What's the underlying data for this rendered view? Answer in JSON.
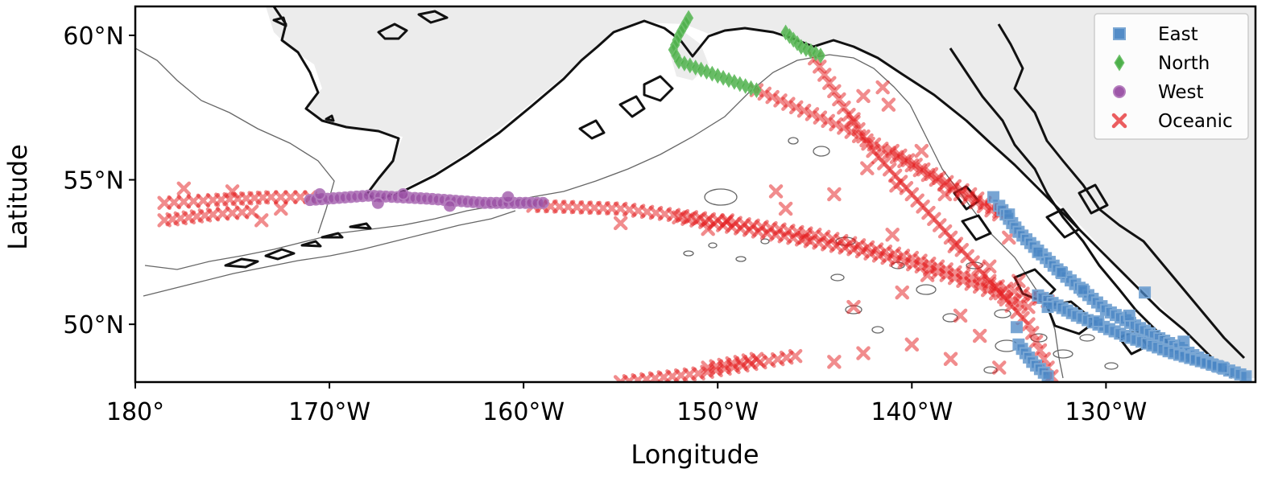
{
  "chart_data": {
    "type": "scatter",
    "title": "",
    "xlabel": "Longitude",
    "ylabel": "Latitude",
    "xlim": [
      -180,
      -122.3
    ],
    "ylim": [
      48,
      61
    ],
    "x_ticks": [
      {
        "value": -180,
        "label": "180°"
      },
      {
        "value": -170,
        "label": "170°W"
      },
      {
        "value": -160,
        "label": "160°W"
      },
      {
        "value": -150,
        "label": "150°W"
      },
      {
        "value": -140,
        "label": "140°W"
      },
      {
        "value": -130,
        "label": "130°W"
      }
    ],
    "y_ticks": [
      {
        "value": 50,
        "label": "50°N"
      },
      {
        "value": 55,
        "label": "55°N"
      },
      {
        "value": 60,
        "label": "60°N"
      }
    ],
    "legend_position": "top-right",
    "series": [
      {
        "name": "East",
        "marker": "square",
        "color": "#4a86c4",
        "edge": "#7aa7d4",
        "alpha": 0.75,
        "segments": [
          [
            [
              -135.5,
              54.1
            ],
            [
              -134.5,
              53.2
            ],
            [
              -132.5,
              51.9
            ],
            [
              -130.0,
              50.5
            ],
            [
              -127.5,
              49.6
            ],
            [
              -124.5,
              48.6
            ],
            [
              -122.8,
              48.2
            ]
          ],
          [
            [
              -133.5,
              51.0
            ],
            [
              -131.5,
              50.3
            ],
            [
              -129.0,
              49.6
            ],
            [
              -126.5,
              49.0
            ],
            [
              -124.0,
              48.5
            ]
          ],
          [
            [
              -134.5,
              49.3
            ],
            [
              -133.8,
              48.7
            ],
            [
              -133.0,
              48.2
            ]
          ]
        ],
        "scatter": [
          [
            -135.8,
            54.4
          ],
          [
            -135.0,
            53.8
          ],
          [
            -133.5,
            52.5
          ],
          [
            -132.3,
            51.8
          ],
          [
            -131.2,
            51.2
          ],
          [
            -128.0,
            51.1
          ],
          [
            -134.6,
            49.9
          ],
          [
            -133.0,
            50.6
          ],
          [
            -128.8,
            50.3
          ],
          [
            -126.0,
            49.4
          ],
          [
            -130.4,
            50.1
          ]
        ]
      },
      {
        "name": "North",
        "marker": "diamond",
        "color": "#4daf4a",
        "edge": "#6cc06a",
        "alpha": 0.85,
        "segments": [
          [
            [
              -151.5,
              60.6
            ],
            [
              -152.0,
              60.0
            ],
            [
              -152.3,
              59.5
            ],
            [
              -152.0,
              59.1
            ],
            [
              -150.0,
              58.6
            ],
            [
              -148.0,
              58.1
            ]
          ],
          [
            [
              -146.5,
              60.1
            ],
            [
              -145.7,
              59.6
            ],
            [
              -144.7,
              59.3
            ]
          ]
        ],
        "scatter": []
      },
      {
        "name": "West",
        "marker": "circle",
        "color": "#984ea3",
        "edge": "#b47dbd",
        "alpha": 0.75,
        "segments": [
          [
            [
              -171.0,
              54.3
            ],
            [
              -168.0,
              54.45
            ],
            [
              -165.0,
              54.35
            ],
            [
              -162.0,
              54.2
            ],
            [
              -159.0,
              54.2
            ]
          ]
        ],
        "scatter": [
          [
            -170.5,
            54.5
          ],
          [
            -167.5,
            54.2
          ],
          [
            -166.2,
            54.5
          ],
          [
            -163.8,
            54.1
          ],
          [
            -160.8,
            54.4
          ]
        ]
      },
      {
        "name": "Oceanic",
        "marker": "x",
        "color": "#e41a1c",
        "edge": "#e41a1c",
        "alpha": 0.5,
        "segments": [
          [
            [
              -148.0,
              58.1
            ],
            [
              -143.5,
              56.8
            ],
            [
              -140.0,
              55.5
            ],
            [
              -137.5,
              54.5
            ],
            [
              -135.5,
              53.8
            ]
          ],
          [
            [
              -145.0,
              59.2
            ],
            [
              -143.5,
              57.5
            ],
            [
              -142.0,
              56.0
            ],
            [
              -140.0,
              54.5
            ],
            [
              -138.0,
              53.0
            ],
            [
              -136.0,
              51.5
            ],
            [
              -134.0,
              50.0
            ],
            [
              -132.8,
              48.2
            ]
          ],
          [
            [
              -141.0,
              56.0
            ],
            [
              -139.0,
              55.2
            ],
            [
              -137.0,
              54.5
            ],
            [
              -135.5,
              53.9
            ]
          ],
          [
            [
              -159.5,
              54.1
            ],
            [
              -155.0,
              54.0
            ],
            [
              -150.0,
              53.6
            ],
            [
              -145.0,
              53.1
            ],
            [
              -140.0,
              52.3
            ],
            [
              -136.0,
              51.4
            ],
            [
              -133.0,
              50.8
            ]
          ],
          [
            [
              -152.0,
              53.7
            ],
            [
              -147.0,
              53.1
            ],
            [
              -143.0,
              52.6
            ],
            [
              -139.5,
              52.0
            ],
            [
              -136.5,
              51.3
            ],
            [
              -134.0,
              50.6
            ]
          ],
          [
            [
              -178.5,
              54.2
            ],
            [
              -176.0,
              54.3
            ],
            [
              -173.0,
              54.4
            ],
            [
              -171.0,
              54.4
            ]
          ],
          [
            [
              -178.5,
              53.6
            ],
            [
              -176.0,
              53.8
            ],
            [
              -174.0,
              53.9
            ]
          ],
          [
            [
              -155.0,
              48.0
            ],
            [
              -151.0,
              48.3
            ],
            [
              -146.0,
              48.9
            ]
          ],
          [
            [
              -150.5,
              48.5
            ],
            [
              -148.0,
              48.8
            ]
          ]
        ],
        "scatter": [
          [
            -177.5,
            54.7
          ],
          [
            -175.0,
            54.6
          ],
          [
            -173.5,
            53.6
          ],
          [
            -172.5,
            54.0
          ],
          [
            -142.5,
            57.9
          ],
          [
            -141.5,
            58.2
          ],
          [
            -143.0,
            57.1
          ],
          [
            -141.2,
            57.6
          ],
          [
            -139.5,
            56.0
          ],
          [
            -142.3,
            55.4
          ],
          [
            -144.0,
            54.5
          ],
          [
            -146.5,
            54.0
          ],
          [
            -149.5,
            53.6
          ],
          [
            -141.0,
            53.1
          ],
          [
            -137.8,
            52.7
          ],
          [
            -139.2,
            51.7
          ],
          [
            -136.0,
            52.0
          ],
          [
            -134.5,
            51.5
          ],
          [
            -140.5,
            51.1
          ],
          [
            -143.0,
            50.6
          ],
          [
            -137.5,
            50.3
          ],
          [
            -136.5,
            49.6
          ],
          [
            -140.0,
            49.3
          ],
          [
            -142.5,
            49.0
          ],
          [
            -144.0,
            48.7
          ],
          [
            -138.0,
            48.8
          ],
          [
            -135.5,
            48.5
          ],
          [
            -135.0,
            53.0
          ],
          [
            -138.3,
            54.5
          ],
          [
            -140.8,
            54.8
          ],
          [
            -145.5,
            53.0
          ],
          [
            -150.5,
            53.3
          ],
          [
            -155.0,
            53.5
          ],
          [
            -147.0,
            54.6
          ]
        ]
      }
    ]
  },
  "map": {
    "land_color": "#ececec",
    "coast_color": "#111111",
    "contour_color": "#666666"
  }
}
